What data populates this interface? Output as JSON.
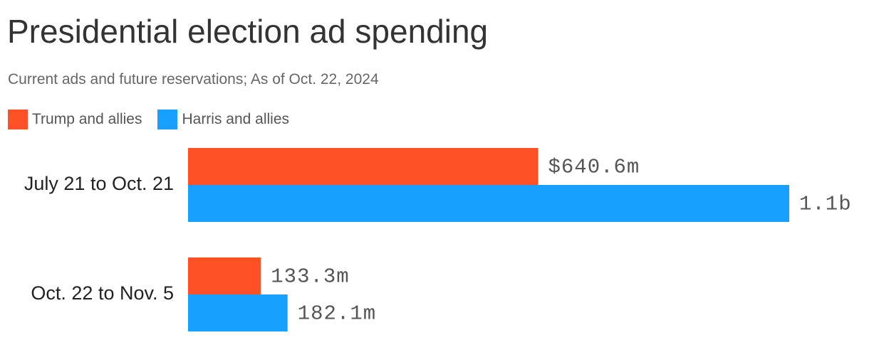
{
  "chart_data": {
    "type": "bar",
    "orientation": "horizontal",
    "title": "Presidential election ad spending",
    "subtitle": "Current ads and future reservations; As of Oct. 22, 2024",
    "categories": [
      "July 21 to Oct. 21",
      "Oct. 22 to Nov. 5"
    ],
    "series": [
      {
        "name": "Trump and allies",
        "color": "#ff5125",
        "values": [
          640.6,
          133.3
        ],
        "labels": [
          "$640.6m",
          "133.3m"
        ]
      },
      {
        "name": "Harris and allies",
        "color": "#18a0ff",
        "values": [
          1100,
          182.1
        ],
        "labels": [
          "1.1b",
          "182.1m"
        ]
      }
    ],
    "unit": "millions of dollars",
    "xlim": [
      0,
      1100
    ],
    "grid": false,
    "legend_position": "top-left"
  }
}
